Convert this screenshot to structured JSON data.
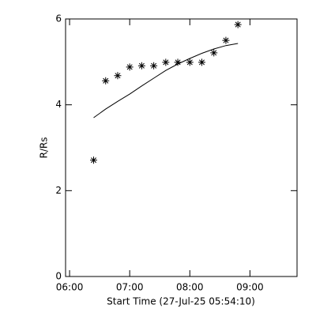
{
  "chart_data": {
    "type": "scatter",
    "x_label": "Start Time (27-Jul-25 05:54:10)",
    "y_label": "R/Rs",
    "xlim": [
      "05:56",
      "09:47"
    ],
    "xticks": [
      "06:00",
      "07:00",
      "08:00",
      "09:00"
    ],
    "ylim": [
      0,
      6
    ],
    "yticks": [
      0,
      2,
      4,
      6
    ],
    "series": [
      {
        "marker": "asterisk",
        "color": "#000000",
        "x": [
          "06:24",
          "06:36",
          "06:48",
          "07:00",
          "07:12",
          "07:24",
          "07:36",
          "07:48",
          "08:00",
          "08:12",
          "08:24",
          "08:36",
          "08:48"
        ],
        "values": [
          2.71,
          4.56,
          4.68,
          4.88,
          4.91,
          4.91,
          4.99,
          4.99,
          4.99,
          4.99,
          5.21,
          5.5,
          5.87
        ]
      },
      {
        "marker": "line",
        "color": "#000000",
        "x": [
          "06:24",
          "06:36",
          "06:48",
          "07:00",
          "07:12",
          "07:24",
          "07:36",
          "07:48",
          "08:00",
          "08:12",
          "08:24",
          "08:36",
          "08:48"
        ],
        "values": [
          3.7,
          3.9,
          4.08,
          4.25,
          4.44,
          4.62,
          4.8,
          4.95,
          5.08,
          5.2,
          5.3,
          5.38,
          5.43
        ]
      }
    ]
  }
}
